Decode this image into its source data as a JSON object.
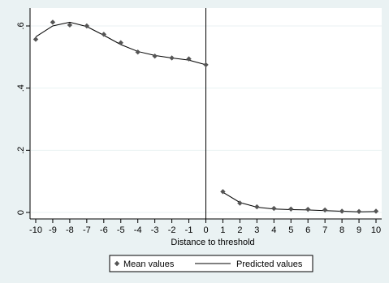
{
  "chart_data": {
    "type": "scatter",
    "xlabel": "Distance to threshold",
    "ylabel": "",
    "xlim": [
      -10,
      10
    ],
    "ylim": [
      0,
      0.6
    ],
    "x_ticks": [
      -10,
      -9,
      -8,
      -7,
      -6,
      -5,
      -4,
      -3,
      -2,
      -1,
      0,
      1,
      2,
      3,
      4,
      5,
      6,
      7,
      8,
      9,
      10
    ],
    "x_tick_labels": [
      "-10",
      "-9",
      "-8",
      "-7",
      "-6",
      "-5",
      "-4",
      "-3",
      "-2",
      "-1",
      "0",
      "1",
      "2",
      "3",
      "4",
      "5",
      "6",
      "7",
      "8",
      "9",
      "10"
    ],
    "y_ticks": [
      0,
      0.2,
      0.4,
      0.6
    ],
    "y_tick_labels": [
      "0",
      ".2",
      ".4",
      ".6"
    ],
    "threshold_x": 0,
    "grid": true,
    "legend_position": "bottom",
    "series": [
      {
        "name": "Mean values",
        "kind": "markers",
        "color": "#555555",
        "x": [
          -10,
          -9,
          -8,
          -7,
          -6,
          -5,
          -4,
          -3,
          -2,
          -1,
          0,
          1,
          2,
          3,
          4,
          5,
          6,
          7,
          8,
          9,
          10
        ],
        "y": [
          0.557,
          0.612,
          0.603,
          0.6,
          0.573,
          0.546,
          0.516,
          0.503,
          0.497,
          0.494,
          0.475,
          0.067,
          0.03,
          0.018,
          0.013,
          0.011,
          0.01,
          0.008,
          0.004,
          0.003,
          0.004
        ]
      },
      {
        "name": "Predicted values",
        "kind": "line",
        "color": "#000000",
        "segments": [
          {
            "x": [
              -10,
              -9,
              -8,
              -7,
              -6,
              -5,
              -4,
              -3,
              -2,
              -1,
              0
            ],
            "y": [
              0.565,
              0.6,
              0.612,
              0.598,
              0.57,
              0.54,
              0.518,
              0.505,
              0.497,
              0.49,
              0.475
            ]
          },
          {
            "x": [
              1,
              2,
              3,
              4,
              5,
              6,
              7,
              8,
              9,
              10
            ],
            "y": [
              0.065,
              0.032,
              0.017,
              0.011,
              0.009,
              0.008,
              0.006,
              0.004,
              0.002,
              0.003
            ]
          }
        ]
      }
    ],
    "colors": {
      "outer_background": "#eaf2f3",
      "plot_background": "#ffffff",
      "grid": "#eaf2f3",
      "axis": "#000000"
    }
  }
}
